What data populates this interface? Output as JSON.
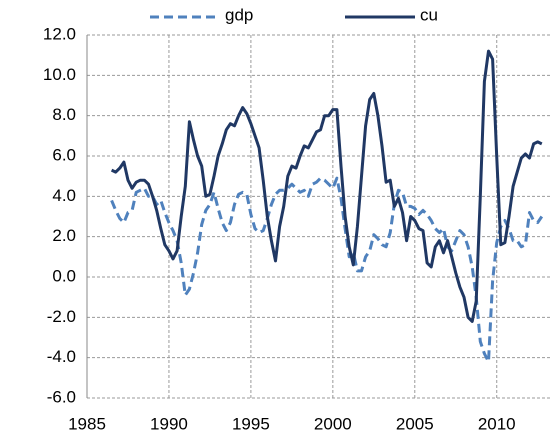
{
  "chart_data": {
    "type": "line",
    "x": [
      1986.5,
      1986.75,
      1987,
      1987.25,
      1987.5,
      1987.75,
      1988,
      1988.25,
      1988.5,
      1988.75,
      1989,
      1989.25,
      1989.5,
      1989.75,
      1990,
      1990.25,
      1990.5,
      1990.75,
      1991,
      1991.25,
      1991.5,
      1991.75,
      1992,
      1992.25,
      1992.5,
      1992.75,
      1993,
      1993.25,
      1993.5,
      1993.75,
      1994,
      1994.25,
      1994.5,
      1994.75,
      1995,
      1995.25,
      1995.5,
      1995.75,
      1996,
      1996.25,
      1996.5,
      1996.75,
      1997,
      1997.25,
      1997.5,
      1997.75,
      1998,
      1998.25,
      1998.5,
      1998.75,
      1999,
      1999.25,
      1999.5,
      1999.75,
      2000,
      2000.25,
      2000.5,
      2000.75,
      2001,
      2001.25,
      2001.5,
      2001.75,
      2002,
      2002.25,
      2002.5,
      2002.75,
      2003,
      2003.25,
      2003.5,
      2003.75,
      2004,
      2004.25,
      2004.5,
      2004.75,
      2005,
      2005.25,
      2005.5,
      2005.75,
      2006,
      2006.25,
      2006.5,
      2006.75,
      2007,
      2007.25,
      2007.5,
      2007.75,
      2008,
      2008.25,
      2008.5,
      2008.75,
      2009,
      2009.25,
      2009.5,
      2009.75,
      2010,
      2010.25,
      2010.5,
      2010.75,
      2011,
      2011.25,
      2011.5,
      2011.75,
      2012,
      2012.25,
      2012.5,
      2012.75
    ],
    "series": [
      {
        "name": "gdp",
        "color": "#4f81bd",
        "dash": true,
        "values": [
          3.8,
          3.3,
          2.9,
          2.7,
          3.2,
          3.3,
          4.2,
          4.3,
          4.4,
          4.0,
          4.0,
          3.6,
          3.8,
          3.2,
          2.7,
          2.3,
          1.8,
          0.7,
          -0.9,
          -0.6,
          0.2,
          1.2,
          2.6,
          3.3,
          3.6,
          4.2,
          3.4,
          2.7,
          2.3,
          2.7,
          3.6,
          4.1,
          4.2,
          4.1,
          3.1,
          2.4,
          2.2,
          2.3,
          2.9,
          3.6,
          4.1,
          4.3,
          4.3,
          4.4,
          4.6,
          4.4,
          4.2,
          4.3,
          4.0,
          4.6,
          4.7,
          4.9,
          4.8,
          4.6,
          4.4,
          4.9,
          3.9,
          2.4,
          1.0,
          1.2,
          0.3,
          0.3,
          1.0,
          1.3,
          2.1,
          1.9,
          1.6,
          1.5,
          2.2,
          3.6,
          4.3,
          4.2,
          3.5,
          3.5,
          3.4,
          3.1,
          3.3,
          3.1,
          2.8,
          2.4,
          2.2,
          2.4,
          1.5,
          1.3,
          1.8,
          2.3,
          2.1,
          1.5,
          0.5,
          -1.0,
          -3.2,
          -3.8,
          -4.2,
          -0.2,
          1.7,
          2.5,
          2.8,
          2.4,
          1.8,
          1.8,
          1.5,
          1.6,
          3.2,
          2.8,
          2.7,
          3.0
        ]
      },
      {
        "name": "cu",
        "color": "#203864",
        "dash": false,
        "values": [
          5.3,
          5.2,
          5.4,
          5.7,
          4.8,
          4.4,
          4.7,
          4.8,
          4.8,
          4.6,
          4.0,
          3.3,
          2.4,
          1.6,
          1.3,
          0.9,
          1.3,
          3.0,
          4.5,
          7.7,
          6.8,
          6.0,
          5.5,
          4.0,
          4.1,
          5.0,
          6.0,
          6.6,
          7.3,
          7.6,
          7.5,
          8.0,
          8.4,
          8.1,
          7.6,
          7.0,
          6.4,
          4.8,
          3.0,
          1.8,
          0.8,
          2.5,
          3.5,
          5.0,
          5.5,
          5.4,
          6.0,
          6.5,
          6.4,
          6.8,
          7.2,
          7.3,
          8.0,
          8.0,
          8.3,
          8.3,
          5.5,
          3.0,
          1.5,
          0.6,
          2.5,
          5.0,
          7.5,
          8.8,
          9.1,
          8.0,
          6.5,
          4.7,
          4.8,
          3.5,
          3.9,
          3.2,
          1.8,
          3.0,
          2.8,
          2.4,
          2.3,
          0.7,
          0.5,
          1.5,
          1.8,
          1.2,
          1.8,
          1.0,
          0.2,
          -0.5,
          -1.0,
          -2.0,
          -2.2,
          -1.2,
          4.0,
          9.7,
          11.2,
          10.8,
          6.0,
          1.6,
          1.7,
          3.0,
          4.5,
          5.2,
          5.9,
          6.1,
          5.9,
          6.6,
          6.7,
          6.6
        ]
      }
    ],
    "xlim": [
      1985,
      2013.25
    ],
    "xticks": [
      1985,
      1990,
      1995,
      2000,
      2005,
      2010
    ],
    "ylim": [
      -6,
      12
    ],
    "yticks": [
      {
        "value": -6,
        "label": "-6.0"
      },
      {
        "value": -4,
        "label": "-4.0"
      },
      {
        "value": -2,
        "label": "-2.0"
      },
      {
        "value": 0,
        "label": "0.0"
      },
      {
        "value": 2,
        "label": "2.0"
      },
      {
        "value": 4,
        "label": "4.0"
      },
      {
        "value": 6,
        "label": "6.0"
      },
      {
        "value": 8,
        "label": "8.0"
      },
      {
        "value": 10,
        "label": "10.0"
      },
      {
        "value": 12,
        "label": "12.0"
      }
    ],
    "grid": true,
    "legend": "top"
  }
}
